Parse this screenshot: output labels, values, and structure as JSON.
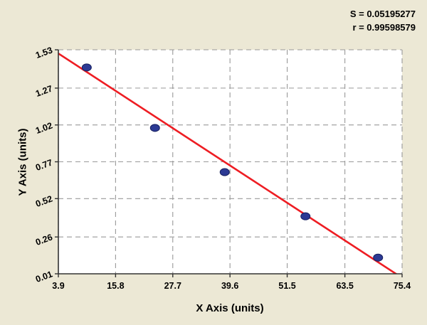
{
  "stats": {
    "s_line": "S = 0.05195277",
    "r_line": "r = 0.99598579"
  },
  "chart_data": {
    "type": "scatter",
    "xlabel": "X Axis (units)",
    "ylabel": "Y Axis (units)",
    "x_tick_labels": [
      "3.9",
      "15.8",
      "27.7",
      "39.6",
      "51.5",
      "63.5",
      "75.4"
    ],
    "y_tick_labels": [
      "0.01",
      "0.26",
      "0.52",
      "0.77",
      "1.02",
      "1.27",
      "1.53"
    ],
    "xlim": [
      3.9,
      75.4
    ],
    "ylim": [
      0.01,
      1.53
    ],
    "grid": "dashed",
    "points": [
      {
        "x": 9.8,
        "y": 1.41
      },
      {
        "x": 24.0,
        "y": 1.0
      },
      {
        "x": 38.5,
        "y": 0.7
      },
      {
        "x": 55.3,
        "y": 0.4
      },
      {
        "x": 70.4,
        "y": 0.12
      }
    ],
    "regression_line": {
      "x1": 3.9,
      "y1": 1.505,
      "x2": 76.0,
      "y2": -0.03
    },
    "colors": {
      "background": "#ece8d5",
      "plot_background": "#ffffff",
      "grid": "#999999",
      "axis": "#333333",
      "point_fill": "#2c3a94",
      "point_stroke": "#161f5e",
      "line": "#ee1d23",
      "text": "#000000"
    }
  }
}
